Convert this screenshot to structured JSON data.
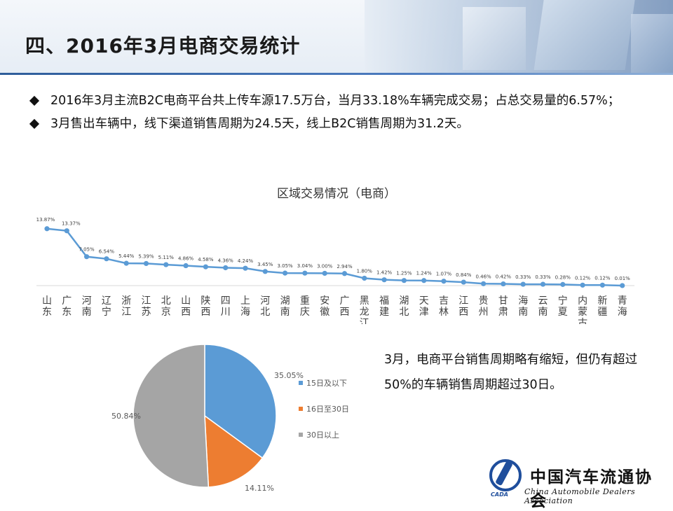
{
  "page_title": "四、2016年3月电商交易统计",
  "bullets": [
    "2016年3月主流B2C电商平台共上传车源17.5万台，当月33.18%车辆完成交易；占总交易量的6.57%；",
    "3月售出车辆中，线下渠道销售周期为24.5天，线上B2C销售周期为31.2天。"
  ],
  "note": "3月，电商平台销售周期略有缩短，但仍有超过50%的车辆销售周期超过30日。",
  "logo": {
    "cn": "中国汽车流通协会",
    "en": "China Automobile Dealers Association",
    "mark": "CADA"
  },
  "colors": {
    "line": "#5b9bd5",
    "pie_blue": "#5b9bd5",
    "pie_orange": "#ed7d31",
    "pie_gray": "#a5a5a5"
  },
  "chart_data": [
    {
      "type": "line",
      "title": "区域交易情况（电商）",
      "categories": [
        "山东",
        "广东",
        "河南",
        "辽宁",
        "浙江",
        "江苏",
        "北京",
        "山西",
        "陕西",
        "四川",
        "上海",
        "河北",
        "湖南",
        "重庆",
        "安徽",
        "广西",
        "黑龙江",
        "福建",
        "湖北",
        "天津",
        "吉林",
        "江西",
        "贵州",
        "甘肃",
        "海南",
        "云南",
        "宁夏",
        "内蒙古",
        "新疆",
        "青海"
      ],
      "values": [
        13.87,
        13.37,
        7.05,
        6.54,
        5.44,
        5.39,
        5.11,
        4.86,
        4.58,
        4.36,
        4.24,
        3.45,
        3.05,
        3.04,
        3.0,
        2.94,
        1.8,
        1.42,
        1.25,
        1.24,
        1.07,
        0.84,
        0.46,
        0.42,
        0.33,
        0.33,
        0.28,
        0.12,
        0.12,
        0.01
      ],
      "labels": [
        "13.87%",
        "13.37%",
        "7.05%",
        "6.54%",
        "5.44%",
        "5.39%",
        "5.11%",
        "4.86%",
        "4.58%",
        "4.36%",
        "4.24%",
        "3.45%",
        "3.05%",
        "3.04%",
        "3.00%",
        "2.94%",
        "1.80%",
        "1.42%",
        "1.25%",
        "1.24%",
        "1.07%",
        "0.84%",
        "0.46%",
        "0.42%",
        "0.33%",
        "0.33%",
        "0.28%",
        "0.12%",
        "0.12%",
        "0.01%"
      ],
      "ylim": [
        0,
        14
      ],
      "grid": false,
      "legend": false
    },
    {
      "type": "pie",
      "slices": [
        {
          "name": "15日及以下",
          "value": 35.05,
          "label": "35.05%"
        },
        {
          "name": "16日至30日",
          "value": 14.11,
          "label": "14.11%"
        },
        {
          "name": "30日以上",
          "value": 50.84,
          "label": "50.84%"
        }
      ],
      "legend_position": "right"
    }
  ]
}
